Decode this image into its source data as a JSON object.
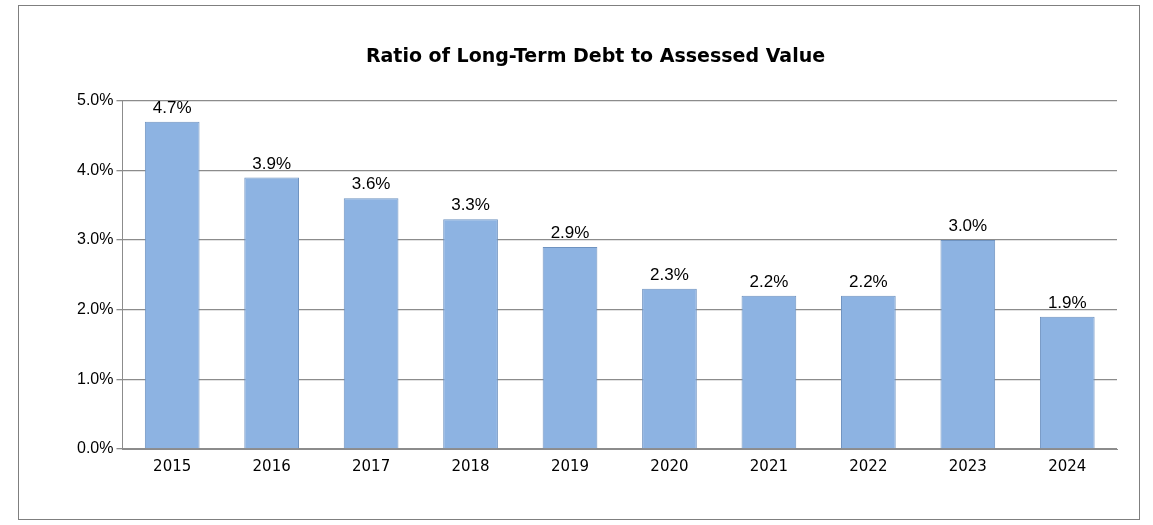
{
  "chart_data": {
    "type": "bar",
    "title": "Ratio of Long-Term Debt to Assessed Value",
    "categories": [
      "2015",
      "2016",
      "2017",
      "2018",
      "2019",
      "2020",
      "2021",
      "2022",
      "2023",
      "2024"
    ],
    "values": [
      4.7,
      3.9,
      3.6,
      3.3,
      2.9,
      2.3,
      2.2,
      2.2,
      3.0,
      1.9
    ],
    "value_labels": [
      "4.7%",
      "3.9%",
      "3.6%",
      "3.3%",
      "2.9%",
      "2.3%",
      "2.2%",
      "2.2%",
      "3.0%",
      "1.9%"
    ],
    "color": "#8db3e2",
    "ylim": [
      0,
      5
    ],
    "yticks": [
      {
        "value": 0,
        "label": "0.0%"
      },
      {
        "value": 1,
        "label": "1.0%"
      },
      {
        "value": 2,
        "label": "2.0%"
      },
      {
        "value": 3,
        "label": "3.0%"
      },
      {
        "value": 4,
        "label": "4.0%"
      },
      {
        "value": 5,
        "label": "5.0%"
      }
    ],
    "grid": "y"
  }
}
